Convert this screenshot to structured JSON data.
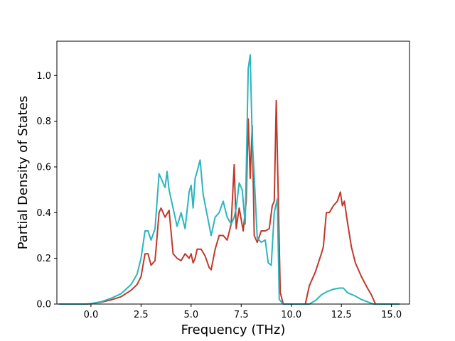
{
  "chart_data": {
    "type": "line",
    "title": "",
    "xlabel": "Frequency (THz)",
    "ylabel": "Partial Density of States",
    "xlim": [
      -1.7,
      15.9
    ],
    "ylim": [
      0.0,
      1.15
    ],
    "xticks": [
      0.0,
      2.5,
      5.0,
      7.5,
      10.0,
      12.5,
      15.0
    ],
    "xtick_labels": [
      "0.0",
      "2.5",
      "5.0",
      "7.5",
      "10.0",
      "12.5",
      "15.0"
    ],
    "yticks": [
      0.0,
      0.2,
      0.4,
      0.6,
      0.8,
      1.0
    ],
    "ytick_labels": [
      "0.0",
      "0.2",
      "0.4",
      "0.6",
      "0.8",
      "1.0"
    ],
    "grid": false,
    "legend": "none",
    "series": [
      {
        "color": "#c0392b",
        "x": [
          -1.6,
          -0.2,
          0.0,
          0.5,
          1.0,
          1.5,
          2.0,
          2.3,
          2.5,
          2.7,
          2.85,
          3.0,
          3.2,
          3.4,
          3.5,
          3.7,
          3.9,
          4.1,
          4.3,
          4.5,
          4.7,
          4.9,
          5.0,
          5.1,
          5.2,
          5.3,
          5.5,
          5.7,
          5.9,
          6.0,
          6.2,
          6.4,
          6.6,
          6.8,
          7.0,
          7.15,
          7.25,
          7.4,
          7.6,
          7.75,
          7.85,
          7.95,
          8.05,
          8.15,
          8.3,
          8.5,
          8.7,
          8.9,
          9.05,
          9.15,
          9.25,
          9.33,
          9.45,
          9.6,
          9.9,
          10.3,
          10.7,
          10.9,
          11.2,
          11.5,
          11.6,
          11.75,
          11.9,
          12.1,
          12.3,
          12.45,
          12.55,
          12.65,
          12.8,
          13.0,
          13.2,
          13.5,
          13.8,
          14.0,
          14.2,
          15.4
        ],
        "values": [
          0.0,
          0.0,
          0.002,
          0.008,
          0.018,
          0.032,
          0.06,
          0.085,
          0.12,
          0.22,
          0.22,
          0.17,
          0.19,
          0.4,
          0.42,
          0.38,
          0.41,
          0.22,
          0.2,
          0.19,
          0.22,
          0.2,
          0.22,
          0.18,
          0.2,
          0.24,
          0.24,
          0.21,
          0.16,
          0.15,
          0.24,
          0.3,
          0.3,
          0.28,
          0.35,
          0.61,
          0.33,
          0.42,
          0.32,
          0.45,
          0.81,
          0.55,
          0.78,
          0.3,
          0.27,
          0.32,
          0.32,
          0.33,
          0.43,
          0.45,
          0.89,
          0.55,
          0.05,
          0.0,
          0.0,
          0.0,
          0.0,
          0.08,
          0.14,
          0.22,
          0.25,
          0.4,
          0.4,
          0.43,
          0.45,
          0.49,
          0.43,
          0.45,
          0.36,
          0.25,
          0.18,
          0.12,
          0.07,
          0.04,
          0.0,
          0.0
        ]
      },
      {
        "color": "#2bb5bd",
        "x": [
          -1.6,
          -0.2,
          0.0,
          0.5,
          1.0,
          1.5,
          2.0,
          2.3,
          2.5,
          2.7,
          2.85,
          3.0,
          3.2,
          3.4,
          3.5,
          3.7,
          3.8,
          3.9,
          4.1,
          4.3,
          4.5,
          4.7,
          4.9,
          5.0,
          5.1,
          5.2,
          5.3,
          5.45,
          5.6,
          5.8,
          6.0,
          6.2,
          6.4,
          6.6,
          6.8,
          7.0,
          7.15,
          7.25,
          7.4,
          7.55,
          7.7,
          7.85,
          7.95,
          8.05,
          8.15,
          8.3,
          8.5,
          8.7,
          8.85,
          9.0,
          9.15,
          9.3,
          9.4,
          9.6,
          10.0,
          10.5,
          10.9,
          11.2,
          11.5,
          11.8,
          12.1,
          12.4,
          12.6,
          12.8,
          13.2,
          13.5,
          13.8,
          14.1,
          15.4
        ],
        "values": [
          0.0,
          0.0,
          0.002,
          0.01,
          0.025,
          0.045,
          0.085,
          0.13,
          0.2,
          0.32,
          0.32,
          0.28,
          0.33,
          0.57,
          0.55,
          0.51,
          0.58,
          0.5,
          0.42,
          0.34,
          0.4,
          0.33,
          0.49,
          0.52,
          0.42,
          0.55,
          0.58,
          0.63,
          0.48,
          0.39,
          0.3,
          0.38,
          0.4,
          0.45,
          0.38,
          0.35,
          0.38,
          0.42,
          0.53,
          0.5,
          0.35,
          1.03,
          1.09,
          0.72,
          0.56,
          0.29,
          0.27,
          0.28,
          0.18,
          0.17,
          0.4,
          0.46,
          0.02,
          0.0,
          0.0,
          0.0,
          0.0,
          0.015,
          0.04,
          0.055,
          0.065,
          0.07,
          0.07,
          0.05,
          0.035,
          0.02,
          0.01,
          0.0,
          0.0
        ]
      }
    ]
  }
}
